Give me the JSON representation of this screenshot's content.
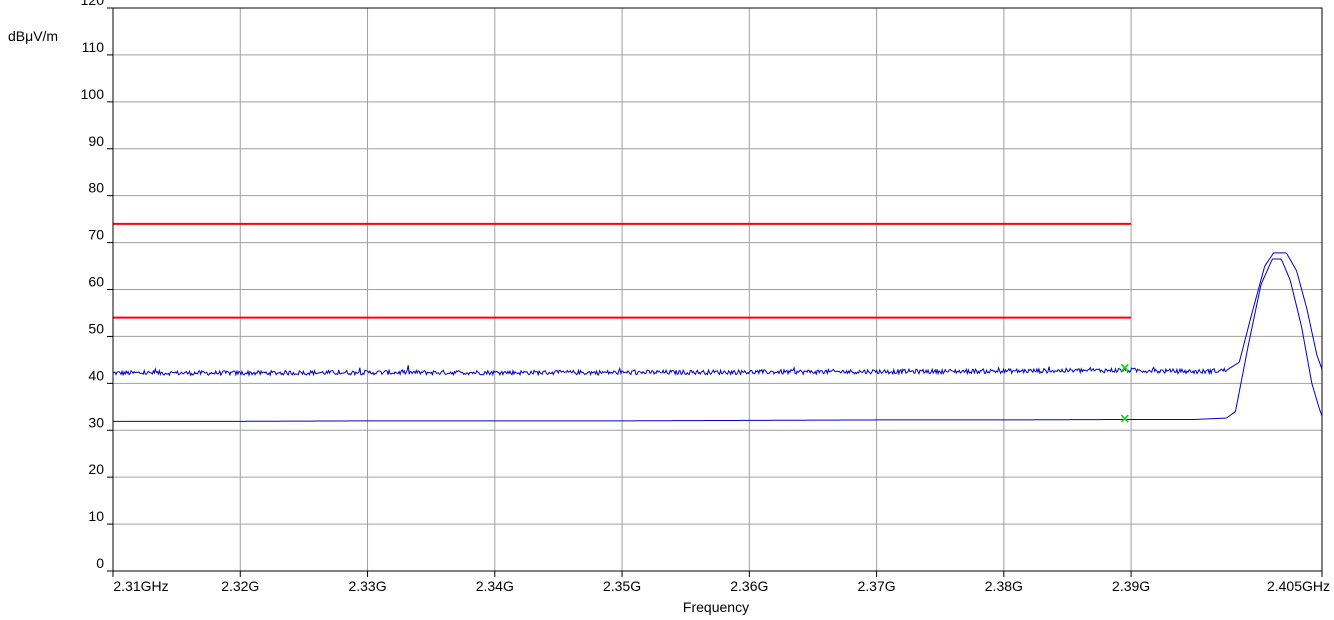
{
  "chart_data": {
    "type": "line",
    "title": "",
    "xlabel": "Frequency",
    "ylabel": "dBμV/m",
    "xlim": [
      2.31,
      2.405
    ],
    "ylim": [
      0,
      120
    ],
    "grid": true,
    "x_ticks": [
      2.31,
      2.32,
      2.33,
      2.34,
      2.35,
      2.36,
      2.37,
      2.38,
      2.39,
      2.405
    ],
    "x_tick_labels": [
      "2.31GHz",
      "2.32G",
      "2.33G",
      "2.34G",
      "2.35G",
      "2.36G",
      "2.37G",
      "2.38G",
      "2.39G",
      "2.405GHz"
    ],
    "y_ticks": [
      0,
      10,
      20,
      30,
      40,
      50,
      60,
      70,
      80,
      90,
      100,
      110,
      120
    ],
    "y_tick_labels": [
      "0",
      "10",
      "20",
      "30",
      "40",
      "50",
      "60",
      "70",
      "80",
      "90",
      "100",
      "110",
      "120"
    ],
    "limit_lines": [
      {
        "x": [
          2.31,
          2.39
        ],
        "y": 74,
        "color": "#ff0000"
      },
      {
        "x": [
          2.31,
          2.39
        ],
        "y": 54,
        "color": "#ff0000"
      }
    ],
    "series": [
      {
        "color": "#0000cc",
        "x": [
          2.31,
          2.32,
          2.33,
          2.34,
          2.35,
          2.36,
          2.37,
          2.38,
          2.39,
          2.3925,
          2.3955,
          2.3975,
          2.3985,
          2.3995,
          2.4005,
          2.4012,
          2.4022,
          2.403,
          2.4038,
          2.4046,
          2.405
        ],
        "y": [
          42.2,
          42.2,
          42.3,
          42.3,
          42.3,
          42.4,
          42.5,
          42.6,
          42.8,
          42.6,
          42.5,
          42.8,
          44.5,
          55,
          65,
          67.8,
          67.8,
          64,
          56,
          46,
          43
        ],
        "noise": 0.7
      },
      {
        "color": "#0000cc",
        "x": [
          2.31,
          2.32,
          2.33,
          2.34,
          2.35,
          2.36,
          2.37,
          2.38,
          2.39,
          2.395,
          2.3975,
          2.3982,
          2.3992,
          2.4002,
          2.4011,
          2.4018,
          2.4025,
          2.4034,
          2.4042,
          2.4048,
          2.405
        ],
        "y": [
          31.9,
          31.9,
          32.0,
          32.0,
          32.0,
          32.1,
          32.2,
          32.2,
          32.3,
          32.3,
          32.6,
          34,
          48,
          61,
          66.5,
          66.5,
          62,
          52,
          40,
          34.5,
          33
        ]
      }
    ],
    "markers": [
      {
        "x": 2.3895,
        "y": 43.3,
        "color": "#00dd00"
      },
      {
        "x": 2.3895,
        "y": 32.5,
        "color": "#00dd00"
      }
    ]
  }
}
